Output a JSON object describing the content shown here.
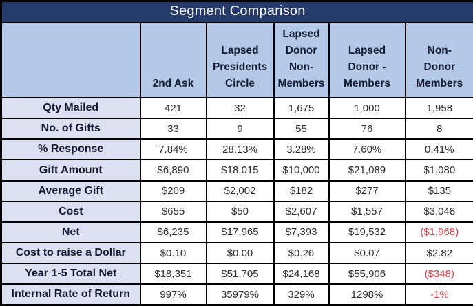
{
  "title": "Segment Comparison",
  "colors": {
    "title_bg": "#253B6B",
    "title_text": "#FFFFFF",
    "header_bg": "#B4C9E7",
    "row_label_bg": "#DCE1F1",
    "border": "#000000",
    "value_text": "#2B2B2B",
    "negative_text": "#DB3E44"
  },
  "chart_data": {
    "type": "table",
    "title": "Segment Comparison",
    "columns": [
      "",
      "2nd Ask",
      "Lapsed\nPresidents\nCircle",
      "Lapsed\nDonor\nNon-\nMembers",
      "Lapsed\nDonor -\nMembers",
      "Non-\nDonor\nMembers"
    ],
    "rows": [
      {
        "label": "Qty Mailed",
        "values": [
          "421",
          "32",
          "1,675",
          "1,000",
          "1,958"
        ]
      },
      {
        "label": "No. of Gifts",
        "values": [
          "33",
          "9",
          "55",
          "76",
          "8"
        ]
      },
      {
        "label": "% Response",
        "values": [
          "7.84%",
          "28.13%",
          "3.28%",
          "7.60%",
          "0.41%"
        ]
      },
      {
        "label": "Gift Amount",
        "values": [
          "$6,890",
          "$18,015",
          "$10,000",
          "$21,089",
          "$1,080"
        ]
      },
      {
        "label": "Average Gift",
        "values": [
          "$209",
          "$2,002",
          "$182",
          "$277",
          "$135"
        ]
      },
      {
        "label": "Cost",
        "values": [
          "$655",
          "$50",
          "$2,607",
          "$1,557",
          "$3,048"
        ]
      },
      {
        "label": "Net",
        "values": [
          "$6,235",
          "$17,965",
          "$7,393",
          "$19,532",
          "($1,968)"
        ],
        "negatives": [
          4
        ]
      },
      {
        "label": "Cost to raise a Dollar",
        "values": [
          "$0.10",
          "$0.00",
          "$0.26",
          "$0.07",
          "$2.82"
        ]
      },
      {
        "label": "Year 1-5 Total Net",
        "values": [
          "$18,351",
          "$51,705",
          "$24,168",
          "$55,906",
          "($348)"
        ],
        "negatives": [
          4
        ]
      },
      {
        "label": "Internal Rate of Return",
        "values": [
          "997%",
          "35979%",
          "329%",
          "1298%",
          "-1%"
        ],
        "negatives": [
          4
        ]
      }
    ],
    "layout": {
      "legend": "none",
      "grid": "black 2px cell borders, 3px outer border",
      "header_align": "bottom-center",
      "value_align": "center"
    }
  }
}
